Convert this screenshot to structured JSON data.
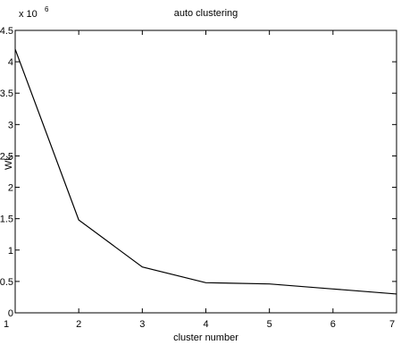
{
  "chart_data": {
    "type": "line",
    "title": "auto clustering",
    "xlabel": "cluster number",
    "ylabel": "Wk",
    "y_multiplier_label": "x 10",
    "y_multiplier_exponent": "6",
    "xlim": [
      1,
      7
    ],
    "ylim": [
      0,
      4.5
    ],
    "grid": false,
    "x_ticks": [
      "1",
      "2",
      "3",
      "4",
      "5",
      "6",
      "7"
    ],
    "y_ticks": [
      "0",
      "0.5",
      "1",
      "1.5",
      "2",
      "2.5",
      "3",
      "3.5",
      "4",
      "4.5"
    ],
    "x": [
      1,
      2,
      3,
      4,
      5,
      6,
      7
    ],
    "series": [
      {
        "values": [
          4.2,
          1.48,
          0.73,
          0.48,
          0.46,
          0.38,
          0.3
        ]
      }
    ],
    "colors": {
      "line": "#000000",
      "axes": "#000000"
    }
  }
}
